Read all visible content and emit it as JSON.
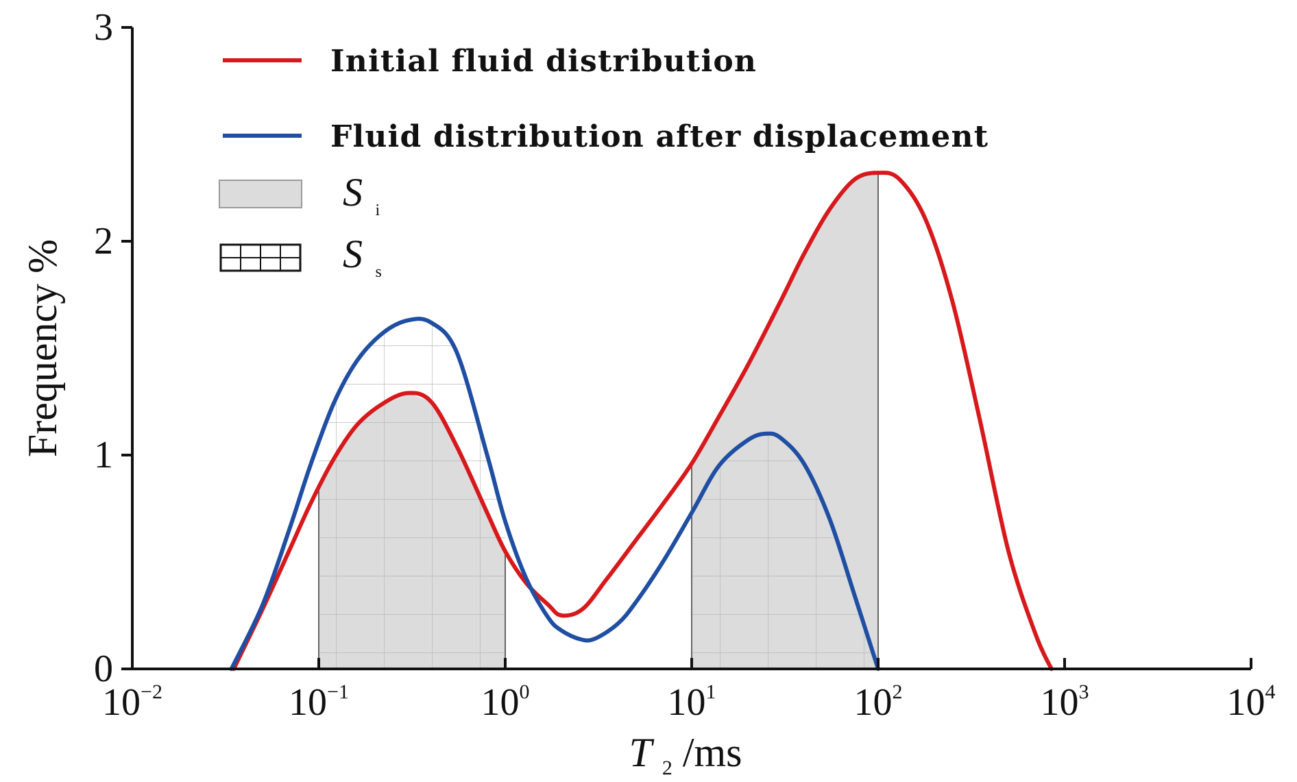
{
  "chart_data": {
    "type": "line",
    "title": "",
    "xlabel": {
      "prefix": "T",
      "subscript": "2",
      "suffix": "/ms"
    },
    "ylabel": "Frequency %",
    "x_scale": "log",
    "xlim": [
      0.01,
      10000
    ],
    "ylim": [
      0,
      3
    ],
    "x_ticks": [
      {
        "value": 0.01,
        "base": "10",
        "exp": "−2"
      },
      {
        "value": 0.1,
        "base": "10",
        "exp": "−1"
      },
      {
        "value": 1,
        "base": "10",
        "exp": "0"
      },
      {
        "value": 10,
        "base": "10",
        "exp": "1"
      },
      {
        "value": 100,
        "base": "10",
        "exp": "2"
      },
      {
        "value": 1000,
        "base": "10",
        "exp": "3"
      },
      {
        "value": 10000,
        "base": "10",
        "exp": "4"
      }
    ],
    "y_ticks": [
      {
        "value": 0,
        "label": "0"
      },
      {
        "value": 1,
        "label": "1"
      },
      {
        "value": 2,
        "label": "2"
      },
      {
        "value": 3,
        "label": "3"
      }
    ],
    "grid": false,
    "legend_position": "top-left",
    "legend": [
      {
        "kind": "line",
        "label": "Initial fluid distribution",
        "color": "#d7191c"
      },
      {
        "kind": "line",
        "label": "Fluid distribution after displacement",
        "color": "#1f4ea3"
      },
      {
        "kind": "fill",
        "label": "S",
        "sub": "i",
        "color": "#dcdcdc"
      },
      {
        "kind": "hatch",
        "label": "S",
        "sub": "s",
        "color": "#111111"
      }
    ],
    "series": [
      {
        "name": "Initial fluid distribution",
        "color": "#d7191c",
        "x": [
          0.035,
          0.05,
          0.07,
          0.09,
          0.12,
          0.16,
          0.22,
          0.3,
          0.4,
          0.55,
          0.8,
          1.0,
          1.3,
          1.7,
          2.0,
          2.6,
          3.5,
          5.0,
          7.0,
          10,
          14,
          20,
          30,
          40,
          55,
          75,
          100,
          130,
          180,
          250,
          350,
          500,
          700,
          850
        ],
        "y": [
          0.0,
          0.28,
          0.56,
          0.77,
          0.98,
          1.14,
          1.24,
          1.29,
          1.25,
          1.04,
          0.73,
          0.55,
          0.4,
          0.3,
          0.25,
          0.28,
          0.42,
          0.6,
          0.77,
          0.96,
          1.18,
          1.42,
          1.72,
          1.94,
          2.15,
          2.29,
          2.32,
          2.29,
          2.1,
          1.72,
          1.17,
          0.55,
          0.16,
          0.0
        ]
      },
      {
        "name": "Fluid distribution after displacement",
        "color": "#1f4ea3",
        "x": [
          0.034,
          0.05,
          0.07,
          0.09,
          0.12,
          0.16,
          0.22,
          0.3,
          0.4,
          0.55,
          0.8,
          1.0,
          1.3,
          1.7,
          2.0,
          2.5,
          3.0,
          4.0,
          5.0,
          7.0,
          10,
          14,
          20,
          25,
          30,
          40,
          55,
          75,
          100
        ],
        "y": [
          0.0,
          0.3,
          0.66,
          0.95,
          1.24,
          1.44,
          1.57,
          1.63,
          1.62,
          1.48,
          1.0,
          0.69,
          0.42,
          0.24,
          0.18,
          0.14,
          0.14,
          0.21,
          0.31,
          0.5,
          0.73,
          0.95,
          1.07,
          1.1,
          1.08,
          0.96,
          0.7,
          0.34,
          0.0
        ]
      }
    ],
    "shaded_regions": [
      {
        "name": "S_i",
        "x_start": 0.1,
        "x_end": 1.0,
        "envelope": "Initial fluid distribution",
        "fill": "#dcdcdc"
      },
      {
        "name": "S_s",
        "x_start": 0.1,
        "x_end": 1.0,
        "envelope": "Fluid distribution after displacement",
        "hatch": true
      },
      {
        "name": "S_i",
        "x_start": 10,
        "x_end": 100,
        "envelope": "Initial fluid distribution",
        "fill": "#dcdcdc"
      },
      {
        "name": "S_s",
        "x_start": 10,
        "x_end": 100,
        "envelope": "Fluid distribution after displacement",
        "hatch": true
      }
    ]
  }
}
